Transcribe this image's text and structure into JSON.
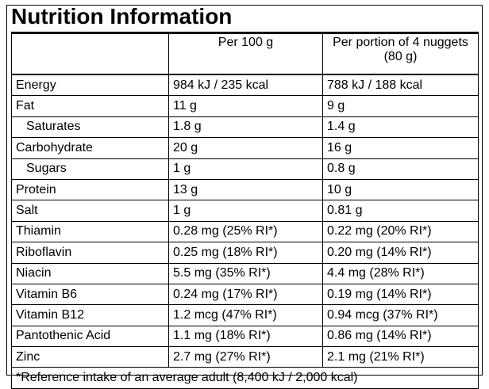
{
  "header": {
    "title": "Nutrition Information"
  },
  "table": {
    "columns": [
      "Per 100 g",
      "Per portion of 4 nuggets (80 g)"
    ],
    "rows": [
      {
        "label": "Energy",
        "values": [
          "984 kJ / 235 kcal",
          "788 kJ / 188 kcal"
        ]
      },
      {
        "label": "Fat",
        "values": [
          "11 g",
          "9 g"
        ],
        "sub": [
          {
            "label": "Saturates",
            "values": [
              "1.8 g",
              "1.4 g"
            ]
          }
        ]
      },
      {
        "label": "Carbohydrate",
        "values": [
          "20 g",
          "16 g"
        ],
        "sub": [
          {
            "label": "Sugars",
            "values": [
              "1 g",
              "0.8 g"
            ]
          }
        ]
      },
      {
        "label": "Protein",
        "values": [
          "13 g",
          "10 g"
        ]
      },
      {
        "label": "Salt",
        "values": [
          "1 g",
          "0.81 g"
        ]
      },
      {
        "label": "Thiamin",
        "values": [
          "0.28 mg (25% RI*)",
          "0.22 mg (20% RI*)"
        ]
      },
      {
        "label": "Riboflavin",
        "values": [
          "0.25 mg (18% RI*)",
          "0.20 mg (14% RI*)"
        ]
      },
      {
        "label": "Niacin",
        "values": [
          "5.5 mg (35% RI*)",
          "4.4 mg (28% RI*)"
        ]
      },
      {
        "label": "Vitamin B6",
        "values": [
          "0.24 mg (17% RI*)",
          "0.19 mg (14% RI*)"
        ]
      },
      {
        "label": "Vitamin B12",
        "values": [
          "1.2 mcg (47% RI*)",
          "0.94 mcg (37% RI*)"
        ]
      },
      {
        "label": "Pantothenic Acid",
        "values": [
          "1.1 mg (18% RI*)",
          "0.86 mg (14% RI*)"
        ]
      },
      {
        "label": "Zinc",
        "values": [
          "2.7 mg (27% RI*)",
          "2.1 mg (21% RI*)"
        ]
      }
    ],
    "footnote": "*Reference intake of an average adult (8,400 kJ / 2,000 kcal)"
  }
}
